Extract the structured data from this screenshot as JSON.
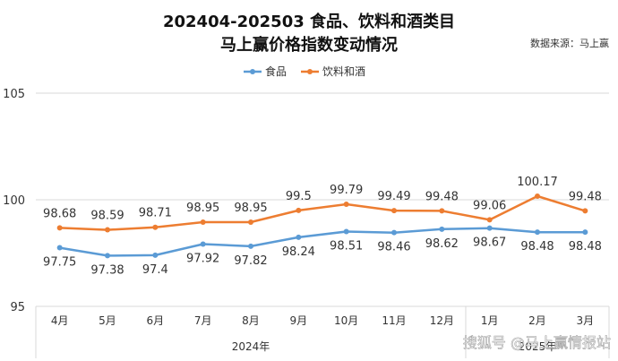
{
  "title_line1": "202404-202503 食品、饮料和酒类目",
  "title_line2": "马上赢价格指数变动情况",
  "source": "数据来源：马上赢",
  "watermark": "搜狐号 @马上赢情报站",
  "colors": {
    "food": "#5b9bd5",
    "drink": "#ed7d31",
    "grid": "#d9d9d9"
  },
  "chart_data": {
    "type": "line",
    "categories": [
      "4月",
      "5月",
      "6月",
      "7月",
      "8月",
      "9月",
      "10月",
      "11月",
      "12月",
      "1月",
      "2月",
      "3月"
    ],
    "year_groups": [
      {
        "label": "2024年",
        "count": 9
      },
      {
        "label": "2025年",
        "count": 3
      }
    ],
    "ylim": [
      95,
      105
    ],
    "yticks": [
      95,
      100,
      105
    ],
    "legend_position": "top-center",
    "series": [
      {
        "name": "食品",
        "color": "#5b9bd5",
        "values": [
          97.75,
          97.38,
          97.4,
          97.92,
          97.82,
          98.24,
          98.51,
          98.46,
          98.62,
          98.67,
          98.48,
          98.48
        ]
      },
      {
        "name": "饮料和酒",
        "color": "#ed7d31",
        "values": [
          98.68,
          98.59,
          98.71,
          98.95,
          98.95,
          99.5,
          99.79,
          99.49,
          99.48,
          99.06,
          100.17,
          99.48
        ]
      }
    ]
  }
}
